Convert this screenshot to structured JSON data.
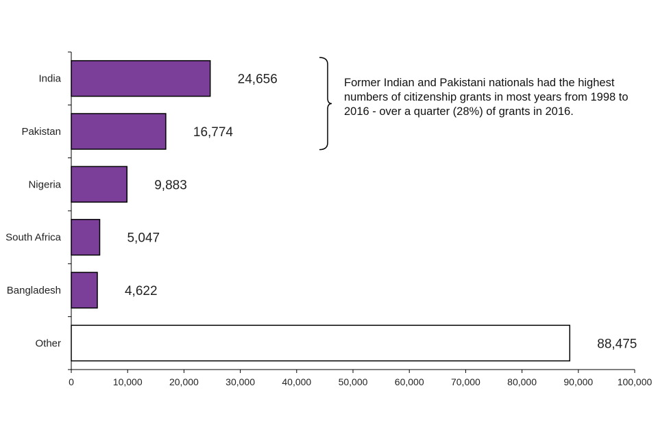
{
  "chart_data": {
    "type": "bar",
    "orientation": "horizontal",
    "categories": [
      "India",
      "Pakistan",
      "Nigeria",
      "South Africa",
      "Bangladesh",
      "Other"
    ],
    "values": [
      24656,
      16774,
      9883,
      5047,
      4622,
      88475
    ],
    "value_labels": [
      "24,656",
      "16,774",
      "9,883",
      "5,047",
      "4,622",
      "88,475"
    ],
    "xlim": [
      0,
      100000
    ],
    "x_ticks": [
      0,
      10000,
      20000,
      30000,
      40000,
      50000,
      60000,
      70000,
      80000,
      90000,
      100000
    ],
    "x_tick_labels": [
      "0",
      "10,000",
      "20,000",
      "30,000",
      "40,000",
      "50,000",
      "60,000",
      "70,000",
      "80,000",
      "90,000",
      "100,000"
    ],
    "title": "",
    "xlabel": "",
    "ylabel": "",
    "grid": false,
    "colors": {
      "highlight": "#7b3f99",
      "other": "#ffffff",
      "outline": "#000000"
    },
    "annotation": {
      "lines": [
        "Former Indian and Pakistani nationals had the highest",
        "numbers of citizenship grants in most years from 1998 to",
        "2016 - over a quarter (28%) of grants in 2016."
      ],
      "brackets": [
        "India",
        "Pakistan"
      ]
    }
  }
}
